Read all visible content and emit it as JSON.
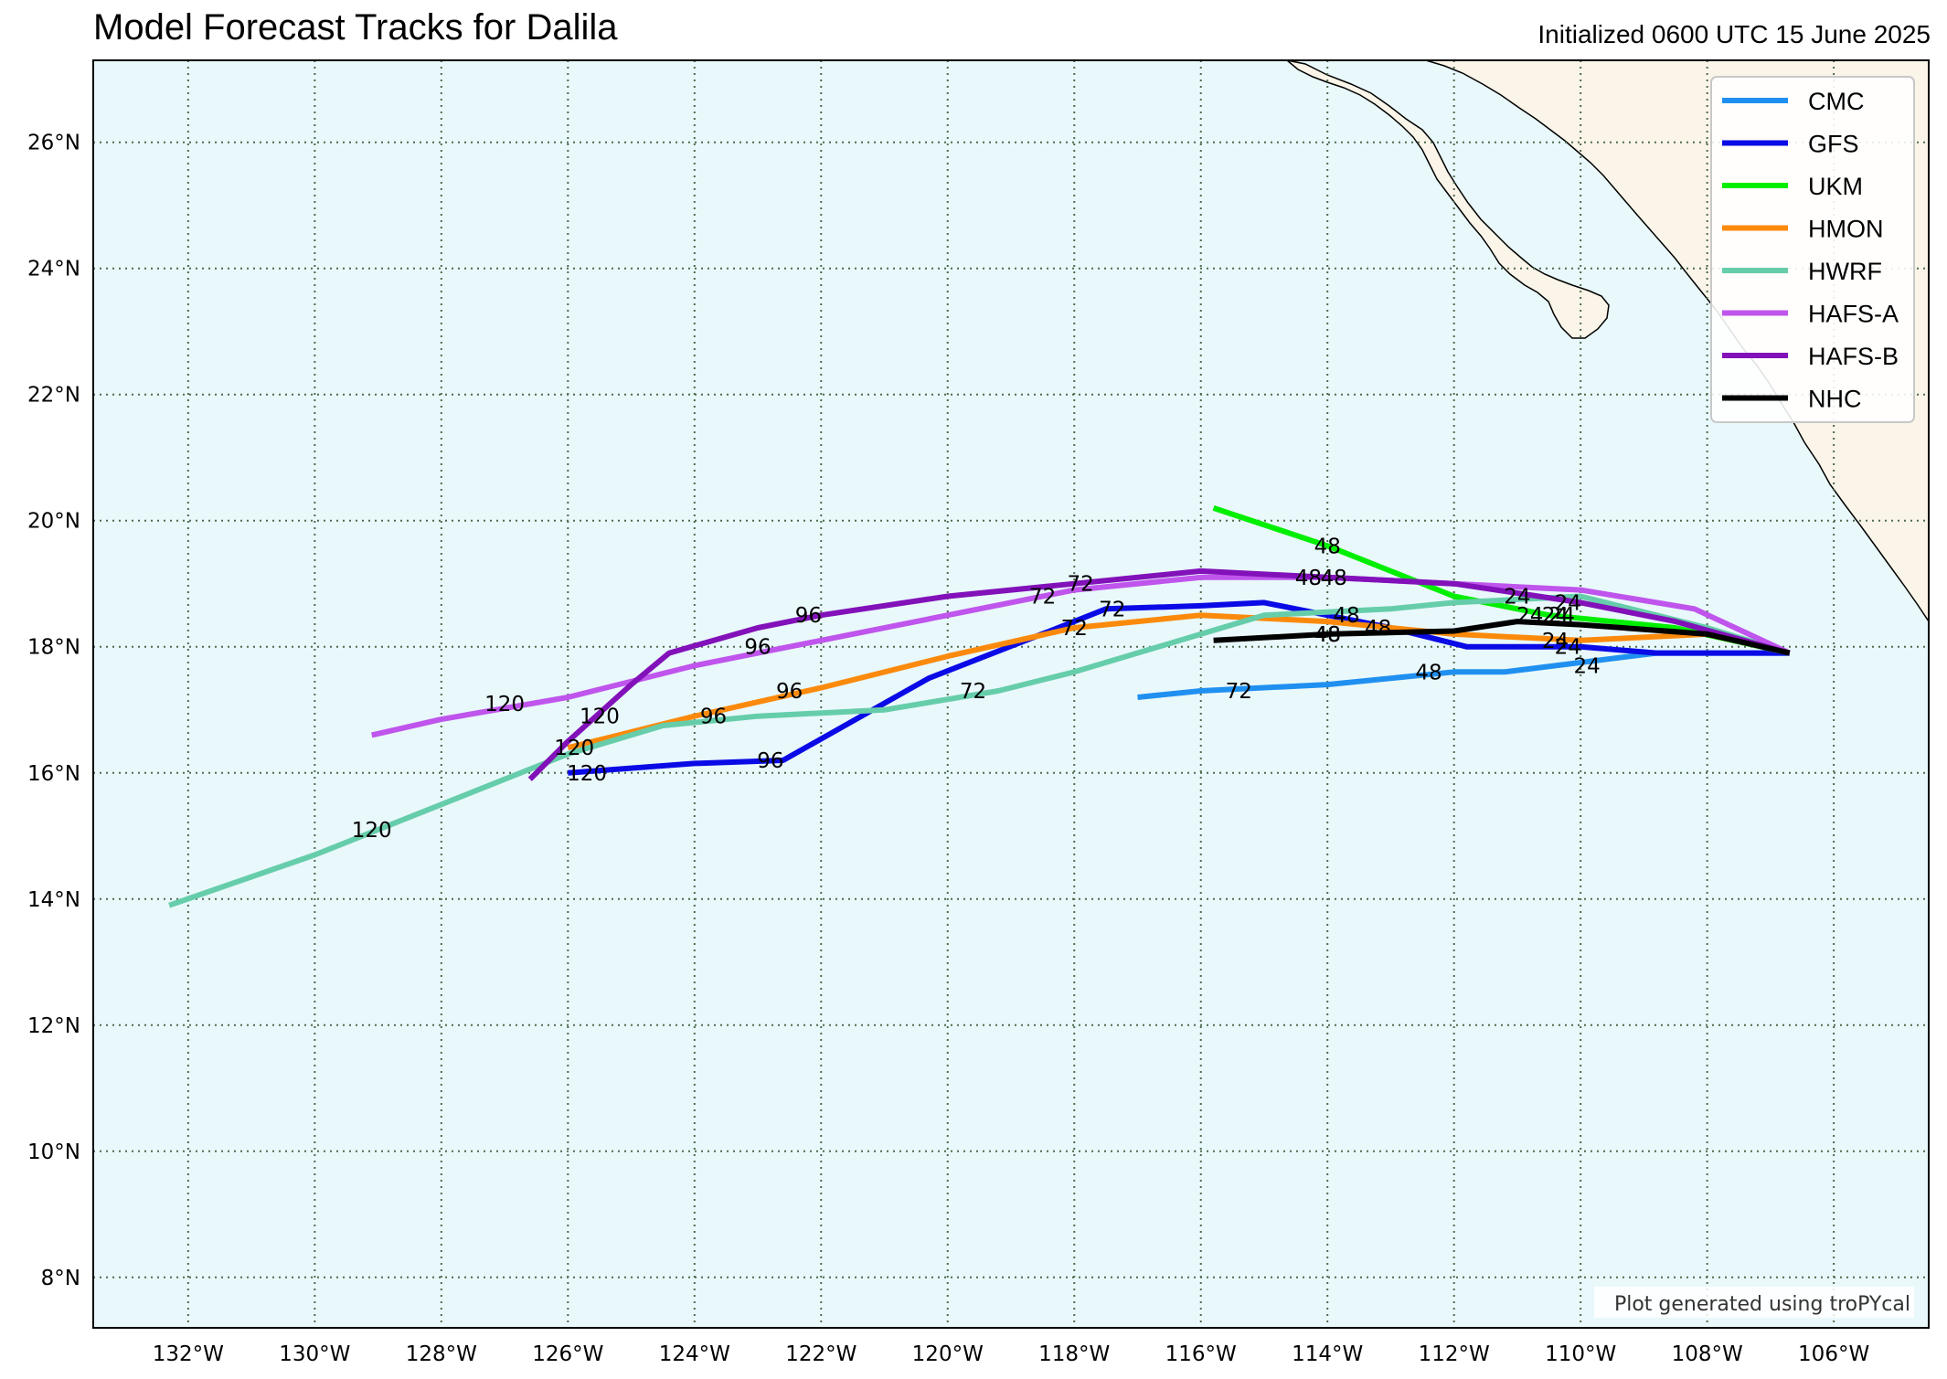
{
  "header": {
    "title": "Model Forecast Tracks for Dalila",
    "subtitle": "Initialized 0600 UTC 15 June 2025"
  },
  "colors": {
    "ocean": "#e9f8fb",
    "land": "#fbf4e8",
    "grid": "#4d6b4d",
    "frame": "#000000"
  },
  "chart_data": {
    "type": "map",
    "lon_range": [
      -133.5,
      -104.5
    ],
    "lat_range": [
      7.2,
      27.3
    ],
    "grid_lon": [
      -132,
      -130,
      -128,
      -126,
      -124,
      -122,
      -120,
      -118,
      -116,
      -114,
      -112,
      -110,
      -108,
      -106
    ],
    "grid_lat": [
      8,
      10,
      12,
      14,
      16,
      18,
      20,
      22,
      24,
      26
    ],
    "xtick_labels": [
      "132°W",
      "130°W",
      "128°W",
      "126°W",
      "124°W",
      "122°W",
      "120°W",
      "118°W",
      "116°W",
      "114°W",
      "112°W",
      "110°W",
      "108°W",
      "106°W"
    ],
    "ytick_labels": [
      "8°N",
      "10°N",
      "12°N",
      "14°N",
      "16°N",
      "18°N",
      "20°N",
      "22°N",
      "24°N",
      "26°N"
    ],
    "grid": true,
    "legend_position": "top-right",
    "series": [
      {
        "name": "CMC",
        "color": "#2090f0",
        "width": 6,
        "track": [
          [
            -106.7,
            17.9
          ],
          [
            -108.8,
            17.9
          ],
          [
            -111.2,
            17.6
          ],
          [
            -112.0,
            17.6
          ],
          [
            -114.0,
            17.4
          ],
          [
            -116.0,
            17.3
          ],
          [
            -117.0,
            17.2
          ]
        ],
        "labels": [
          {
            "text": "24",
            "lon": -109.9,
            "lat": 17.7
          },
          {
            "text": "48",
            "lon": -112.4,
            "lat": 17.6
          },
          {
            "text": "72",
            "lon": -115.4,
            "lat": 17.3
          }
        ]
      },
      {
        "name": "GFS",
        "color": "#0a0ae6",
        "width": 6,
        "track": [
          [
            -106.7,
            17.9
          ],
          [
            -108.8,
            17.9
          ],
          [
            -110.0,
            18.0
          ],
          [
            -111.8,
            18.0
          ],
          [
            -113.0,
            18.3
          ],
          [
            -114.0,
            18.5
          ],
          [
            -115.0,
            18.7
          ],
          [
            -116.0,
            18.65
          ],
          [
            -117.5,
            18.6
          ],
          [
            -118.0,
            18.4
          ],
          [
            -120.3,
            17.5
          ],
          [
            -122.6,
            16.2
          ],
          [
            -124.0,
            16.15
          ],
          [
            -126.0,
            16.0
          ]
        ],
        "labels": [
          {
            "text": "24",
            "lon": -110.2,
            "lat": 18.0
          },
          {
            "text": "48",
            "lon": -113.7,
            "lat": 18.5
          },
          {
            "text": "72",
            "lon": -117.4,
            "lat": 18.6
          },
          {
            "text": "96",
            "lon": -122.8,
            "lat": 16.2
          },
          {
            "text": "120",
            "lon": -125.7,
            "lat": 16.0
          }
        ]
      },
      {
        "name": "UKM",
        "color": "#00ee00",
        "width": 6,
        "track": [
          [
            -106.7,
            17.9
          ],
          [
            -108.5,
            18.3
          ],
          [
            -110.5,
            18.5
          ],
          [
            -112.0,
            18.8
          ],
          [
            -114.0,
            19.6
          ],
          [
            -115.8,
            20.2
          ]
        ],
        "labels": [
          {
            "text": "24",
            "lon": -110.3,
            "lat": 18.5
          },
          {
            "text": "48",
            "lon": -114.0,
            "lat": 19.6
          }
        ]
      },
      {
        "name": "HMON",
        "color": "#fb8a0c",
        "width": 6,
        "track": [
          [
            -106.7,
            17.9
          ],
          [
            -108.0,
            18.2
          ],
          [
            -110.0,
            18.1
          ],
          [
            -112.0,
            18.2
          ],
          [
            -114.0,
            18.4
          ],
          [
            -116.0,
            18.5
          ],
          [
            -118.0,
            18.3
          ],
          [
            -120.0,
            17.85
          ],
          [
            -122.0,
            17.35
          ],
          [
            -124.0,
            16.9
          ],
          [
            -126.0,
            16.4
          ]
        ],
        "labels": [
          {
            "text": "24",
            "lon": -110.4,
            "lat": 18.1
          },
          {
            "text": "48",
            "lon": -113.2,
            "lat": 18.3
          },
          {
            "text": "72",
            "lon": -118.0,
            "lat": 18.3
          },
          {
            "text": "96",
            "lon": -122.5,
            "lat": 17.3
          },
          {
            "text": "120",
            "lon": -125.9,
            "lat": 16.4
          }
        ]
      },
      {
        "name": "HWRF",
        "color": "#66cdaa",
        "width": 6,
        "track": [
          [
            -106.7,
            17.9
          ],
          [
            -108.0,
            18.3
          ],
          [
            -110.0,
            18.8
          ],
          [
            -112.0,
            18.7
          ],
          [
            -113.0,
            18.6
          ],
          [
            -115.0,
            18.5
          ],
          [
            -116.0,
            18.2
          ],
          [
            -118.0,
            17.6
          ],
          [
            -119.2,
            17.3
          ],
          [
            -121.0,
            17.0
          ],
          [
            -123.0,
            16.9
          ],
          [
            -124.5,
            16.75
          ],
          [
            -126.0,
            16.3
          ],
          [
            -128.0,
            15.5
          ],
          [
            -130.0,
            14.7
          ],
          [
            -132.3,
            13.9
          ]
        ],
        "labels": [
          {
            "text": "24",
            "lon": -110.4,
            "lat": 18.5
          },
          {
            "text": "48",
            "lon": -114.0,
            "lat": 18.2
          },
          {
            "text": "72",
            "lon": -119.6,
            "lat": 17.3
          },
          {
            "text": "96",
            "lon": -123.7,
            "lat": 16.9
          },
          {
            "text": "120",
            "lon": -129.1,
            "lat": 15.1
          }
        ]
      },
      {
        "name": "HAFS-A",
        "color": "#bf55ec",
        "width": 6,
        "track": [
          [
            -106.7,
            17.9
          ],
          [
            -108.2,
            18.6
          ],
          [
            -110.0,
            18.9
          ],
          [
            -112.0,
            19.0
          ],
          [
            -114.0,
            19.1
          ],
          [
            -116.0,
            19.1
          ],
          [
            -118.0,
            18.9
          ],
          [
            -120.0,
            18.5
          ],
          [
            -122.0,
            18.1
          ],
          [
            -124.0,
            17.7
          ],
          [
            -126.0,
            17.2
          ],
          [
            -128.0,
            16.85
          ],
          [
            -129.1,
            16.6
          ]
        ],
        "labels": [
          {
            "text": "24",
            "lon": -111.0,
            "lat": 18.8
          },
          {
            "text": "48",
            "lon": -114.3,
            "lat": 19.1
          },
          {
            "text": "72",
            "lon": -118.5,
            "lat": 18.8
          },
          {
            "text": "96",
            "lon": -123.0,
            "lat": 18.0
          },
          {
            "text": "120",
            "lon": -127.0,
            "lat": 17.1
          }
        ]
      },
      {
        "name": "HAFS-B",
        "color": "#8211b9",
        "width": 6,
        "track": [
          [
            -106.7,
            17.9
          ],
          [
            -108.5,
            18.4
          ],
          [
            -110.0,
            18.7
          ],
          [
            -112.0,
            19.0
          ],
          [
            -114.0,
            19.1
          ],
          [
            -116.0,
            19.2
          ],
          [
            -118.0,
            19.0
          ],
          [
            -120.0,
            18.8
          ],
          [
            -122.0,
            18.5
          ],
          [
            -123.0,
            18.3
          ],
          [
            -124.4,
            17.9
          ],
          [
            -125.0,
            17.4
          ],
          [
            -126.0,
            16.5
          ],
          [
            -126.6,
            15.9
          ]
        ],
        "labels": [
          {
            "text": "24",
            "lon": -110.2,
            "lat": 18.7
          },
          {
            "text": "48",
            "lon": -113.9,
            "lat": 19.1
          },
          {
            "text": "72",
            "lon": -117.9,
            "lat": 19.0
          },
          {
            "text": "96",
            "lon": -122.2,
            "lat": 18.5
          },
          {
            "text": "120",
            "lon": -125.5,
            "lat": 16.9
          }
        ]
      },
      {
        "name": "NHC",
        "color": "#000000",
        "width": 6,
        "track": [
          [
            -106.7,
            17.9
          ],
          [
            -108.0,
            18.2
          ],
          [
            -110.0,
            18.35
          ],
          [
            -111.0,
            18.4
          ],
          [
            -112.0,
            18.25
          ],
          [
            -114.0,
            18.2
          ],
          [
            -115.8,
            18.1
          ]
        ],
        "labels": [
          {
            "text": "24",
            "lon": -110.8,
            "lat": 18.5
          },
          {
            "text": "48",
            "lon": -114.0,
            "lat": 18.2
          }
        ]
      }
    ]
  },
  "credit": "Plot generated using troPYcal"
}
